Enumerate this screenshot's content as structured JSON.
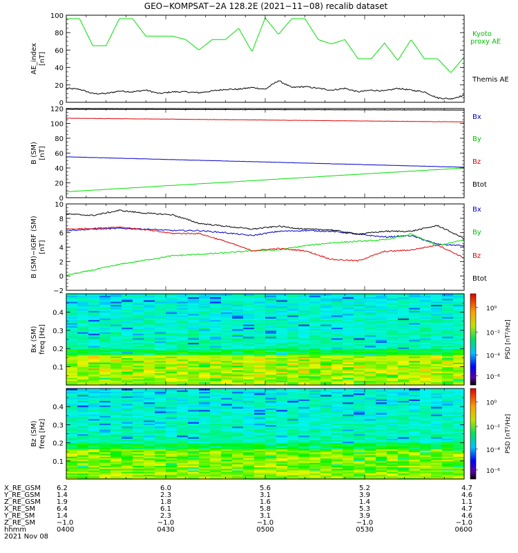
{
  "title": "GEO−KOMPSAT−2A 128.2E (2021−11−08) recalib dataset",
  "colors": {
    "green": "#00e000",
    "red": "#e00000",
    "blue": "#0000cc",
    "black": "#000000"
  },
  "chart_data": [
    {
      "id": "ae",
      "type": "line",
      "ylabel": [
        "AE_index",
        "[nT]"
      ],
      "ylim": [
        0,
        100
      ],
      "yticks": [
        0,
        20,
        40,
        60,
        80,
        100
      ],
      "x": [
        0,
        4,
        8,
        12,
        16,
        20,
        24,
        28,
        32,
        36,
        40,
        44,
        48,
        52,
        56,
        60,
        64,
        68,
        72,
        76,
        80,
        84,
        88,
        92,
        96,
        100,
        104,
        108,
        112,
        116,
        120
      ],
      "series": [
        {
          "name": "Kyoto\nproxy AE",
          "color": "#00e000",
          "values": [
            96,
            96,
            65,
            65,
            96,
            96,
            76,
            76,
            76,
            72,
            60,
            72,
            72,
            85,
            58,
            97,
            78,
            96,
            96,
            72,
            67,
            72,
            50,
            50,
            68,
            48,
            72,
            50,
            50,
            34,
            52
          ]
        },
        {
          "name": "Themis AE",
          "color": "#000000",
          "values": [
            16,
            15,
            10,
            10,
            13,
            12,
            14,
            10,
            12,
            12,
            11,
            13,
            15,
            15,
            17,
            15,
            25,
            17,
            18,
            16,
            14,
            16,
            12,
            14,
            13,
            16,
            14,
            12,
            5,
            4,
            8
          ]
        }
      ],
      "legend": [
        "Kyoto",
        "proxy AE",
        "Themis AE"
      ]
    },
    {
      "id": "bsm",
      "type": "line",
      "ylabel": [
        "B (SM)",
        "[nT]"
      ],
      "ylim": [
        0,
        120
      ],
      "yticks": [
        0,
        20,
        40,
        60,
        80,
        100,
        120
      ],
      "x": [
        0,
        120
      ],
      "series": [
        {
          "name": "Bx",
          "color": "#0000cc",
          "values": [
            55,
            41
          ]
        },
        {
          "name": "By",
          "color": "#00e000",
          "values": [
            8,
            40
          ]
        },
        {
          "name": "Bz",
          "color": "#e00000",
          "values": [
            107,
            102
          ]
        },
        {
          "name": "Btot",
          "color": "#000000",
          "values": [
            119,
            118
          ]
        }
      ],
      "legend": [
        "Bx",
        "By",
        "Bz",
        "Btot"
      ]
    },
    {
      "id": "dbsm",
      "type": "line",
      "ylabel": [
        "B (SM)−IGRF (SM)",
        "[nT]"
      ],
      "ylim": [
        -2,
        10
      ],
      "yticks": [
        -2,
        0,
        2,
        4,
        6,
        8,
        10
      ],
      "x": [
        0,
        8,
        16,
        24,
        32,
        40,
        48,
        56,
        64,
        72,
        80,
        88,
        96,
        104,
        112,
        120
      ],
      "series": [
        {
          "name": "Bx",
          "color": "#0000cc",
          "values": [
            6.3,
            6.5,
            6.6,
            6.5,
            6.3,
            6.3,
            6.0,
            5.6,
            6.2,
            6.3,
            6.2,
            5.8,
            5.4,
            5.6,
            4.4,
            4.2
          ]
        },
        {
          "name": "By",
          "color": "#00e000",
          "values": [
            0.1,
            0.8,
            1.6,
            2.2,
            2.8,
            3.0,
            3.2,
            3.5,
            3.6,
            4.2,
            4.6,
            4.8,
            5.0,
            5.8,
            4.2,
            5.0
          ]
        },
        {
          "name": "Bz",
          "color": "#e00000",
          "values": [
            6.5,
            6.6,
            6.8,
            6.4,
            5.9,
            5.9,
            4.8,
            3.5,
            3.8,
            3.5,
            2.3,
            2.1,
            3.4,
            3.6,
            4.3,
            2.5
          ]
        },
        {
          "name": "Btot",
          "color": "#000000",
          "values": [
            8.6,
            8.4,
            9.1,
            8.7,
            8.5,
            7.3,
            6.9,
            6.5,
            6.9,
            6.5,
            6.4,
            5.8,
            6.2,
            6.2,
            7.0,
            5.2
          ]
        }
      ],
      "legend": [
        "Bx",
        "By",
        "Bz",
        "Btot"
      ]
    },
    {
      "id": "bxspec",
      "type": "heatmap",
      "ylabel": [
        "Bx (SM)",
        "freq [Hz]"
      ],
      "ylim": [
        0,
        0.5
      ],
      "yticks": [
        0.1,
        0.2,
        0.3,
        0.4
      ],
      "colorbar_label": "PSD [nT²/Hz]",
      "colorbar_ticks": [
        "10⁰",
        "10⁻²",
        "10⁻⁴",
        "10⁻⁶"
      ]
    },
    {
      "id": "bzspec",
      "type": "heatmap",
      "ylabel": [
        "Bz (SM)",
        "freq [Hz]"
      ],
      "ylim": [
        0,
        0.5
      ],
      "yticks": [
        0.1,
        0.2,
        0.3,
        0.4
      ],
      "colorbar_label": "PSD [nT²/Hz]",
      "colorbar_ticks": [
        "10⁰",
        "10⁻²",
        "10⁻⁴",
        "10⁻⁶"
      ]
    }
  ],
  "footer": {
    "row_labels": [
      "X_RE_GSM",
      "Y_RE_GSM",
      "Z_RE_GSM",
      "X_RE_SM",
      "Y_RE_SM",
      "Z_RE_SM",
      "hhmm",
      "2021 Nov 08"
    ],
    "columns": [
      [
        "6.2",
        "1.4",
        "1.9",
        "6.4",
        "1.4",
        "−1.0",
        "0400"
      ],
      [
        "6.0",
        "2.3",
        "1.8",
        "6.1",
        "2.3",
        "−1.0",
        "0430"
      ],
      [
        "5.6",
        "3.1",
        "1.6",
        "5.8",
        "3.1",
        "−1.0",
        "0500"
      ],
      [
        "5.2",
        "3.9",
        "1.4",
        "5.3",
        "3.9",
        "−1.0",
        "0530"
      ],
      [
        "4.7",
        "4.6",
        "1.1",
        "4.7",
        "4.6",
        "−1.0",
        "0600"
      ]
    ]
  }
}
